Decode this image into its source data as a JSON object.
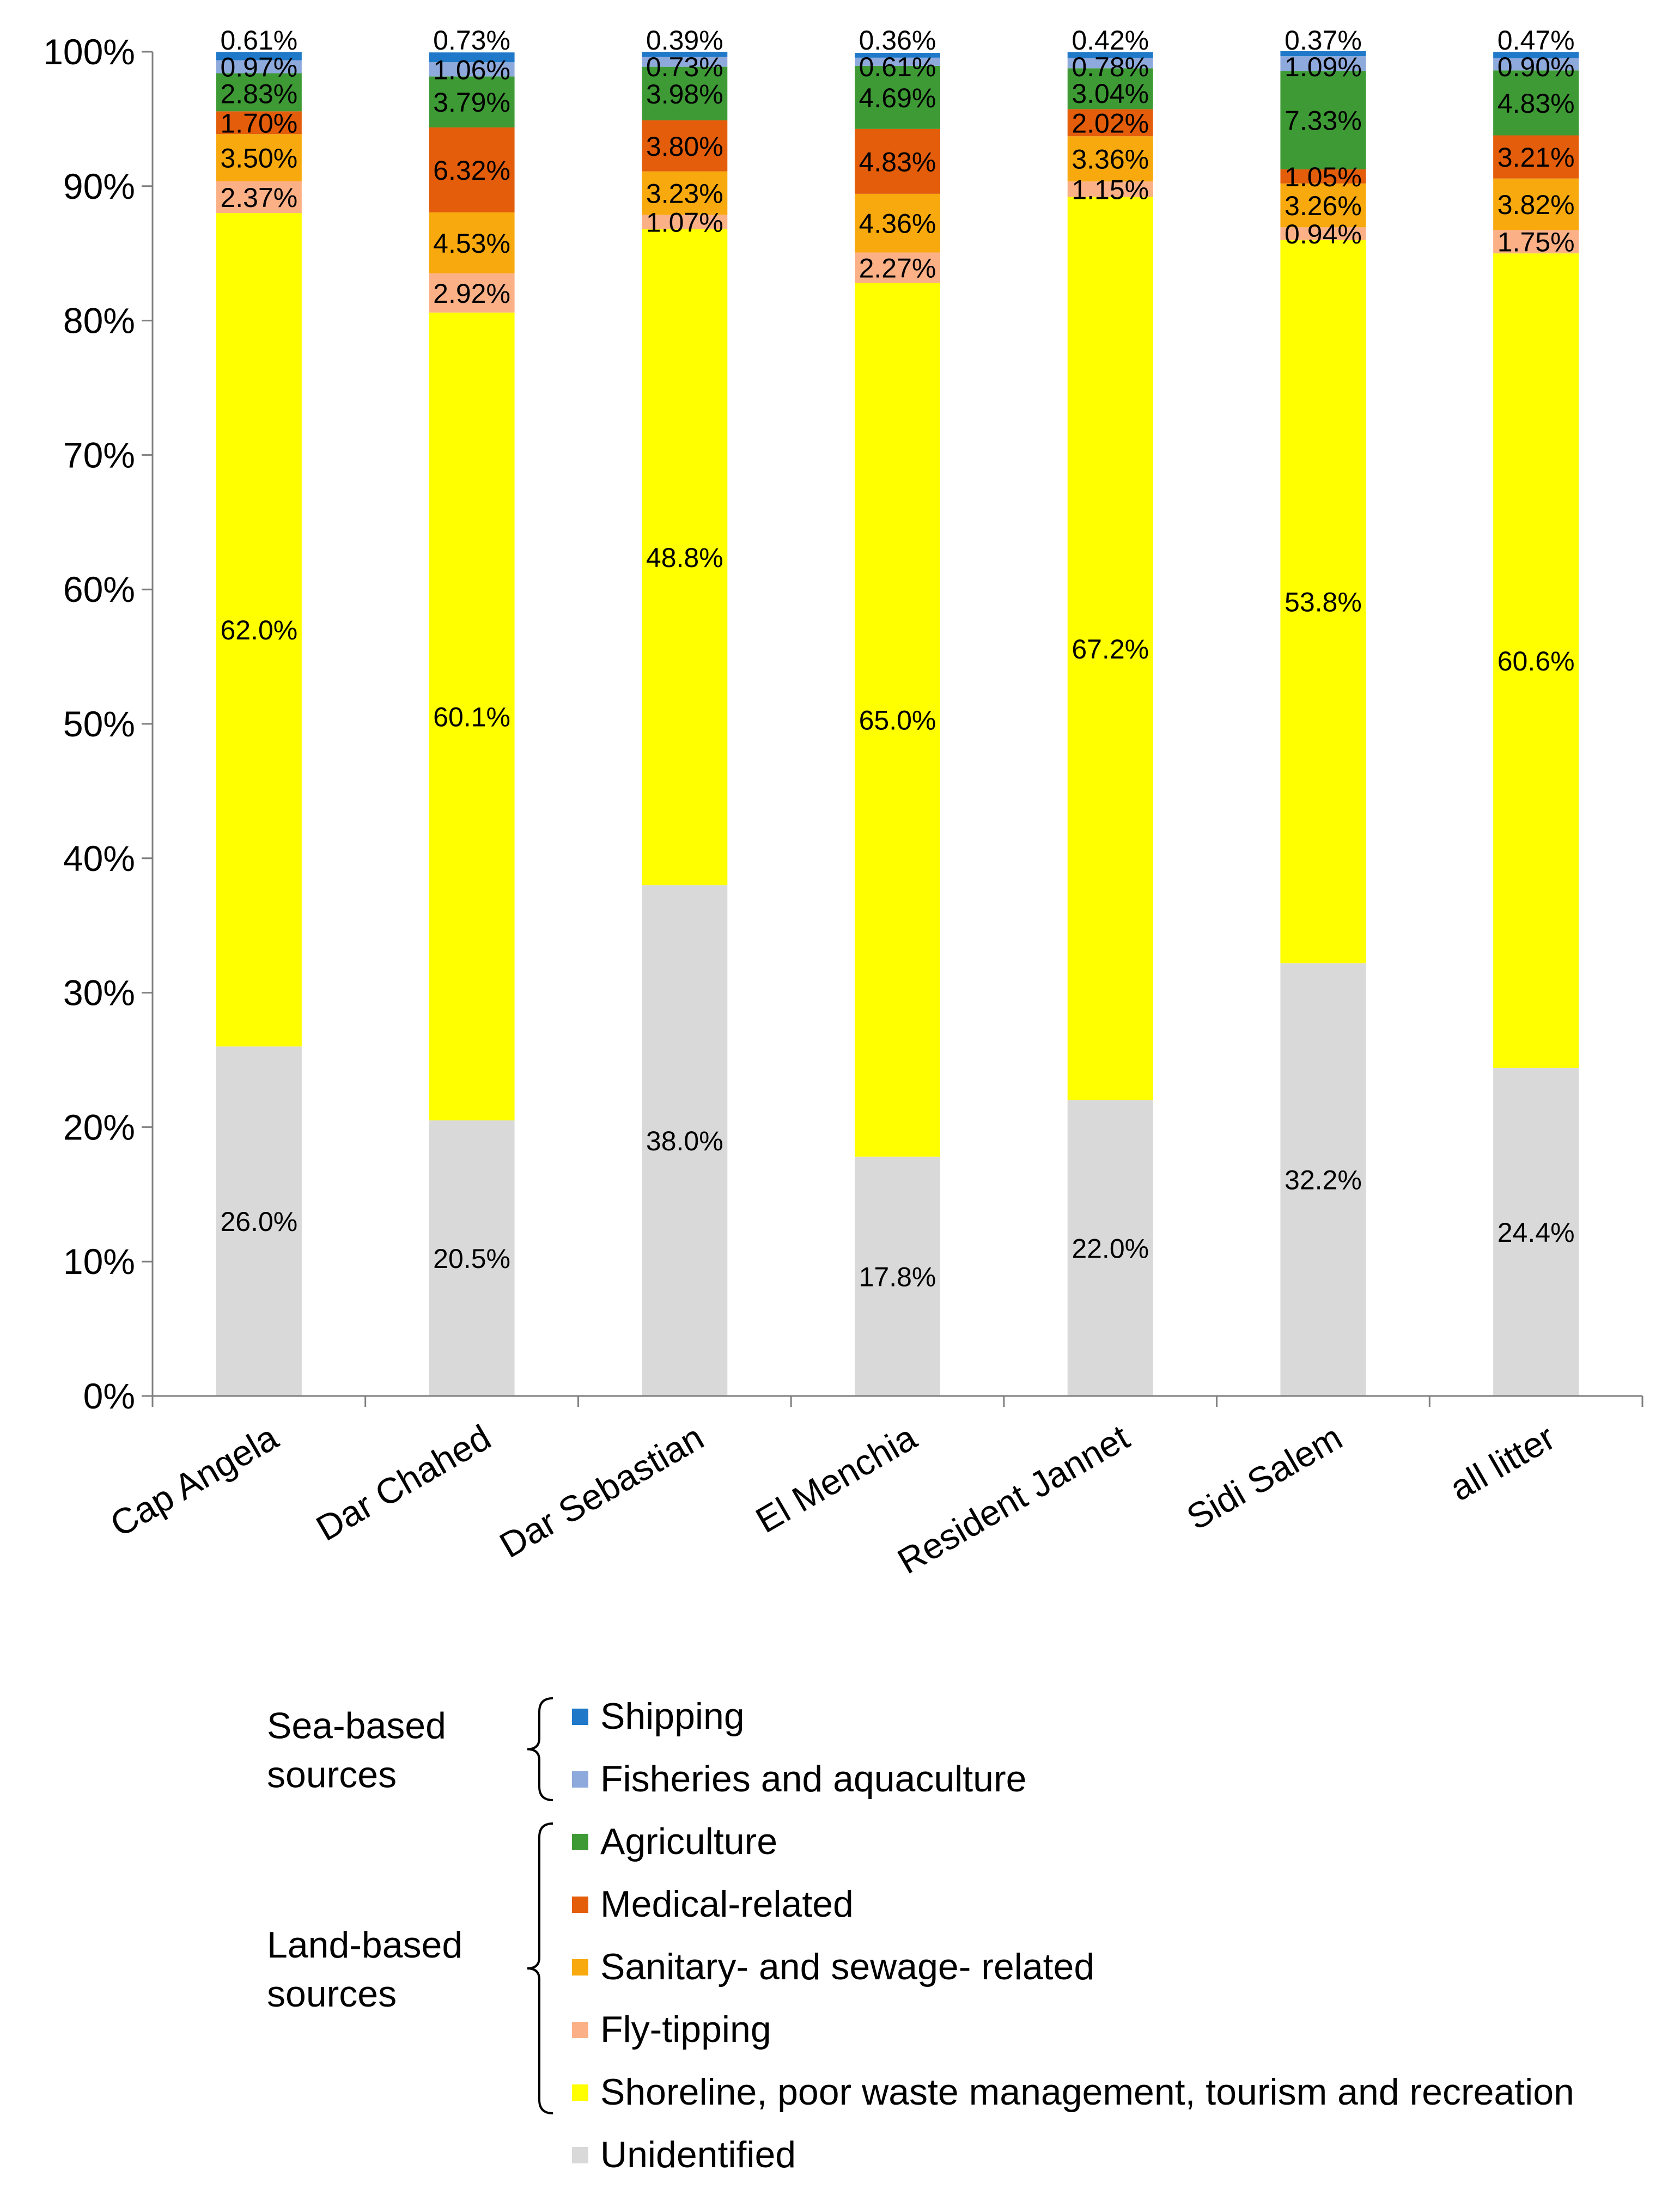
{
  "chart_data": {
    "type": "bar",
    "stacked": true,
    "title": "",
    "xlabel": "",
    "ylabel": "",
    "ylim": [
      0,
      100
    ],
    "yticks": [
      "0%",
      "10%",
      "20%",
      "30%",
      "40%",
      "50%",
      "60%",
      "70%",
      "80%",
      "90%",
      "100%"
    ],
    "grid": false,
    "legend_position": "bottom",
    "categories": [
      "Cap Angela",
      "Dar Chahed",
      "Dar Sebastian",
      "El Menchia",
      "Resident Jannet",
      "Sidi Salem",
      "all litter"
    ],
    "series": [
      {
        "name": "Unidentified",
        "color": "#d9d9d9",
        "values": [
          26.0,
          20.5,
          38.0,
          17.8,
          22.0,
          32.2,
          24.4
        ],
        "labels": [
          "26.0%",
          "20.5%",
          "38.0%",
          "17.8%",
          "22.0%",
          "32.2%",
          "24.4%"
        ]
      },
      {
        "name": "Shoreline, poor waste management, tourism and recreation",
        "color": "#ffff00",
        "values": [
          62.0,
          60.1,
          48.8,
          65.0,
          67.2,
          53.8,
          60.6
        ],
        "labels": [
          "62.0%",
          "60.1%",
          "48.8%",
          "65.0%",
          "67.2%",
          "53.8%",
          "60.6%"
        ]
      },
      {
        "name": "Fly-tipping",
        "color": "#fbb086",
        "values": [
          2.37,
          2.92,
          1.07,
          2.27,
          1.15,
          0.94,
          1.75
        ],
        "labels": [
          "2.37%",
          "2.92%",
          "1.07%",
          "2.27%",
          "1.15%",
          "0.94%",
          "1.75%"
        ]
      },
      {
        "name": "Sanitary- and sewage- related",
        "color": "#f7a90d",
        "values": [
          3.5,
          4.53,
          3.23,
          4.36,
          3.36,
          3.26,
          3.82
        ],
        "labels": [
          "3.50%",
          "4.53%",
          "3.23%",
          "4.36%",
          "3.36%",
          "3.26%",
          "3.82%"
        ]
      },
      {
        "name": "Medical-related",
        "color": "#e35d0b",
        "values": [
          1.7,
          6.32,
          3.8,
          4.83,
          2.02,
          1.05,
          3.21
        ],
        "labels": [
          "1.70%",
          "6.32%",
          "3.80%",
          "4.83%",
          "2.02%",
          "1.05%",
          "3.21%"
        ]
      },
      {
        "name": "Agriculture",
        "color": "#3e9a35",
        "values": [
          2.83,
          3.79,
          3.98,
          4.69,
          3.04,
          7.33,
          4.83
        ],
        "labels": [
          "2.83%",
          "3.79%",
          "3.98%",
          "4.69%",
          "3.04%",
          "7.33%",
          "4.83%"
        ]
      },
      {
        "name": "Fisheries and aquaculture",
        "color": "#8ea9db",
        "values": [
          0.97,
          1.06,
          0.73,
          0.61,
          0.78,
          1.09,
          0.9
        ],
        "labels": [
          "0.97%",
          "1.06%",
          "0.73%",
          "0.61%",
          "0.78%",
          "1.09%",
          "0.90%"
        ]
      },
      {
        "name": "Shipping",
        "color": "#1f78c8",
        "values": [
          0.61,
          0.73,
          0.39,
          0.36,
          0.42,
          0.37,
          0.47
        ],
        "labels": [
          "0.61%",
          "0.73%",
          "0.39%",
          "0.36%",
          "0.42%",
          "0.37%",
          "0.47%"
        ]
      }
    ],
    "legend_groups": [
      {
        "label_lines": [
          "Sea-based",
          "sources"
        ],
        "members": [
          "Shipping",
          "Fisheries and aquaculture"
        ]
      },
      {
        "label_lines": [
          "Land-based",
          "sources"
        ],
        "members": [
          "Agriculture",
          "Medical-related",
          "Sanitary- and sewage- related",
          "Fly-tipping",
          "Shoreline, poor waste management, tourism and recreation"
        ]
      }
    ],
    "legend_order": [
      "Shipping",
      "Fisheries and aquaculture",
      "Agriculture",
      "Medical-related",
      "Sanitary- and sewage- related",
      "Fly-tipping",
      "Shoreline, poor waste management, tourism and recreation",
      "Unidentified"
    ]
  }
}
